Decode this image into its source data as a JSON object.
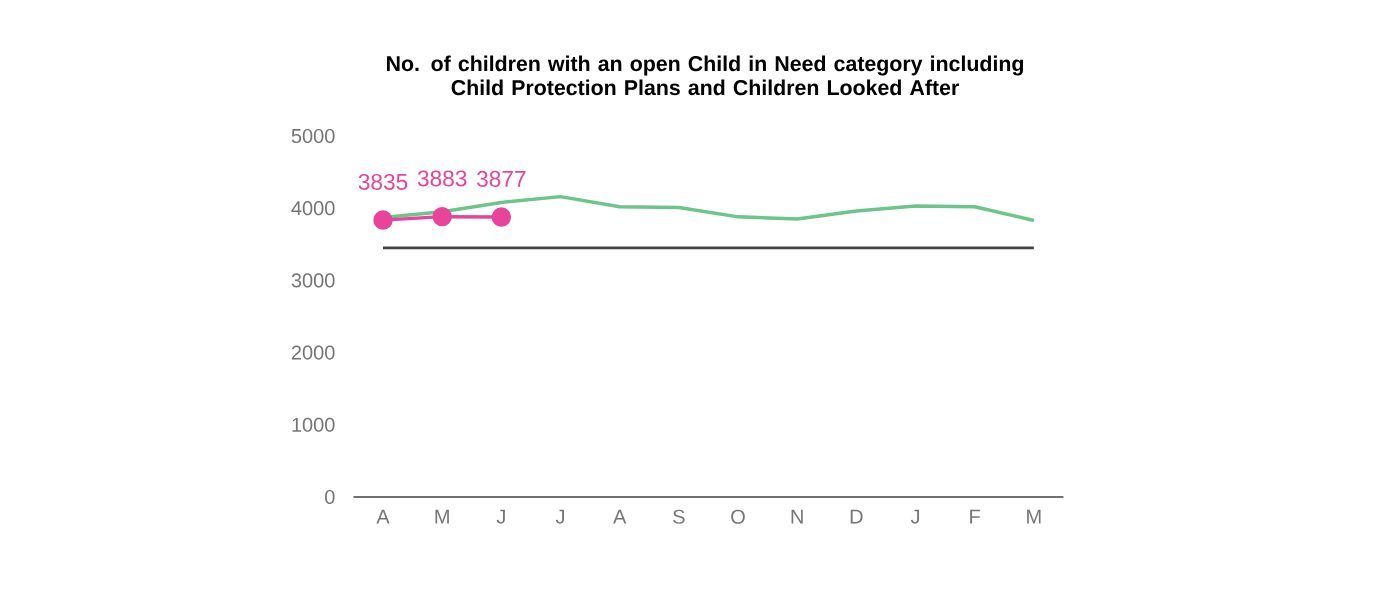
{
  "chart_data": {
    "type": "line",
    "title": "No. of children with an open Child in Need category including\nChild Protection Plans and Children Looked After",
    "categories": [
      "A",
      "M",
      "J",
      "J",
      "A",
      "S",
      "O",
      "N",
      "D",
      "J",
      "F",
      "M"
    ],
    "series": [
      {
        "color": "#6cc58b",
        "marker": "none",
        "values": [
          3870,
          3950,
          4080,
          4160,
          4020,
          4010,
          3880,
          3850,
          3960,
          4030,
          4020,
          3830
        ]
      },
      {
        "color": "#e8449a",
        "marker": "circle",
        "data_labels": true,
        "values": [
          3835,
          3883,
          3877,
          null,
          null,
          null,
          null,
          null,
          null,
          null,
          null,
          null
        ]
      }
    ],
    "ref_lines": [
      {
        "axis": "y",
        "value": 3450,
        "color": "#444444"
      }
    ],
    "ylim": [
      0,
      5000
    ],
    "yticks": [
      0,
      1000,
      2000,
      3000,
      4000,
      5000
    ],
    "grid": false
  }
}
